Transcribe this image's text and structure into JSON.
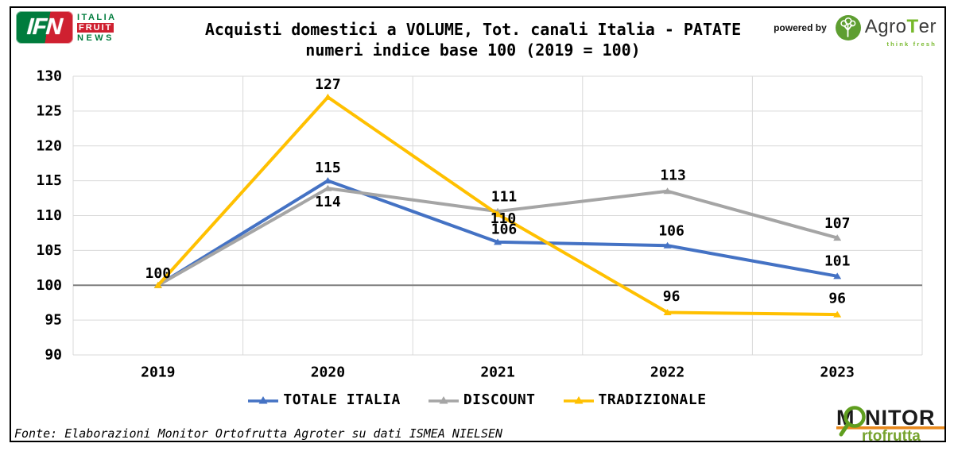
{
  "header": {
    "title_line1": "Acquisti domestici a VOLUME, Tot. canali Italia - PATATE",
    "title_line2": "numeri indice base 100 (2019 = 100)",
    "powered_by": "powered by"
  },
  "logos": {
    "ifn": {
      "acronym": "IFN",
      "line1": "ITALIA",
      "line2": "FRUIT",
      "line3": "NEWS"
    },
    "agroter": {
      "name_prefix": "Agro",
      "name_t": "T",
      "name_suffix": "er",
      "tagline": "think fresh"
    },
    "monitor": {
      "m": "M",
      "nitor": "NITOR",
      "sub": "rtofrutta"
    }
  },
  "chart_data": {
    "type": "line",
    "title": "Acquisti domestici a VOLUME, Tot. canali Italia - PATATE",
    "subtitle": "numeri indice base 100 (2019 = 100)",
    "categories": [
      "2019",
      "2020",
      "2021",
      "2022",
      "2023"
    ],
    "ylim": [
      90,
      130
    ],
    "yticks": [
      90,
      95,
      100,
      105,
      110,
      115,
      120,
      125,
      130
    ],
    "baseline": 100,
    "grid": true,
    "legend_position": "bottom",
    "series": [
      {
        "name": "TOTALE ITALIA",
        "color": "#4472C4",
        "values": [
          100,
          115,
          106,
          106,
          101
        ],
        "values_plot": [
          100,
          115,
          106.2,
          105.7,
          101.3
        ],
        "labels": [
          "",
          "115",
          "106",
          "106",
          "101"
        ],
        "label_offsets": [
          [
            0,
            0
          ],
          [
            0,
            -16
          ],
          [
            8,
            -16
          ],
          [
            5,
            -18
          ],
          [
            0,
            -19
          ]
        ]
      },
      {
        "name": "DISCOUNT",
        "color": "#A5A5A5",
        "values": [
          100,
          114,
          111,
          113,
          107
        ],
        "values_plot": [
          100,
          113.9,
          110.6,
          113.5,
          106.8
        ],
        "labels": [
          "",
          "114",
          "111",
          "113",
          "107"
        ],
        "label_offsets": [
          [
            0,
            0
          ],
          [
            0,
            17
          ],
          [
            8,
            -18
          ],
          [
            7,
            -20
          ],
          [
            0,
            -18
          ]
        ]
      },
      {
        "name": "TRADIZIONALE",
        "color": "#FFC000",
        "values": [
          100,
          127,
          110,
          96,
          96
        ],
        "values_plot": [
          100,
          127,
          110.2,
          96.1,
          95.8
        ],
        "labels": [
          "100",
          "127",
          "110",
          "96",
          "96"
        ],
        "label_offsets": [
          [
            0,
            -15
          ],
          [
            0,
            -16
          ],
          [
            7,
            6
          ],
          [
            5,
            -20
          ],
          [
            0,
            -20
          ]
        ]
      }
    ],
    "colors": {
      "grid": "#D9D9D9",
      "baseline": "#7F7F7F",
      "label": "#000000"
    }
  },
  "footer": {
    "source": "Fonte: Elaborazioni Monitor Ortofrutta Agroter su dati ISMEA NIELSEN"
  }
}
